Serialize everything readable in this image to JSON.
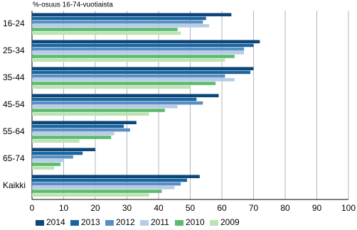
{
  "chart_data": {
    "type": "hbar",
    "title": "%-osuus 16-74-vuotiaista",
    "categories": [
      "16-24",
      "25-34",
      "35-44",
      "45-54",
      "55-64",
      "65-74",
      "Kaikki"
    ],
    "series": [
      {
        "name": "2014",
        "color": "#0d4777",
        "values": [
          63,
          72,
          70,
          59,
          33,
          20,
          53
        ]
      },
      {
        "name": "2013",
        "color": "#1a65a0",
        "values": [
          55,
          70,
          69,
          52,
          29,
          16,
          49
        ]
      },
      {
        "name": "2012",
        "color": "#5b8ec2",
        "values": [
          54,
          67,
          61,
          54,
          31,
          13,
          47
        ]
      },
      {
        "name": "2011",
        "color": "#b6cde6",
        "values": [
          56,
          67,
          64,
          46,
          26,
          10,
          45
        ]
      },
      {
        "name": "2010",
        "color": "#5dbb6e",
        "values": [
          46,
          64,
          58,
          42,
          25,
          9,
          41
        ]
      },
      {
        "name": "2009",
        "color": "#bde3b4",
        "values": [
          47,
          61,
          50,
          37,
          15,
          7,
          37
        ]
      }
    ],
    "xlim": [
      0,
      100
    ],
    "xticks": [
      0,
      10,
      20,
      30,
      40,
      50,
      60,
      70,
      80,
      90,
      100
    ],
    "grid": true
  }
}
